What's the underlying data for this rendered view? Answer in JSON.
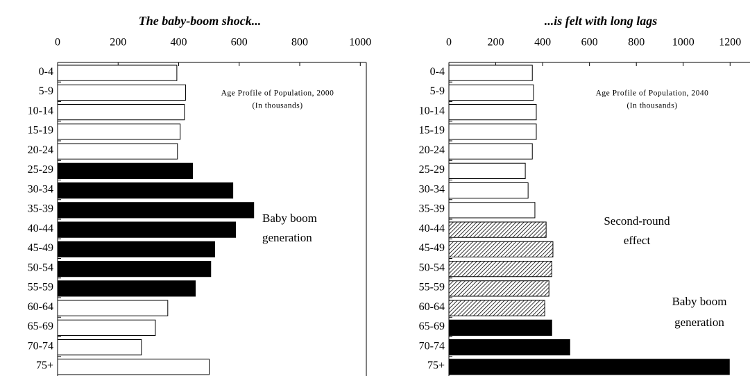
{
  "chart_data": [
    {
      "type": "bar",
      "orientation": "horizontal",
      "title": "The baby-boom shock...",
      "note": [
        "Age Profile of Population, 2000",
        "(In thousands)"
      ],
      "annotations": [
        [
          "Baby boom",
          "generation"
        ]
      ],
      "categories": [
        "0-4",
        "5-9",
        "10-14",
        "15-19",
        "20-24",
        "25-29",
        "30-34",
        "35-39",
        "40-44",
        "45-49",
        "50-54",
        "55-59",
        "60-64",
        "65-69",
        "70-74",
        "75+"
      ],
      "values": [
        394,
        423,
        419,
        405,
        396,
        446,
        579,
        648,
        588,
        519,
        506,
        455,
        364,
        323,
        277,
        501
      ],
      "bar_fills": [
        "white",
        "white",
        "white",
        "white",
        "white",
        "black",
        "black",
        "black",
        "black",
        "black",
        "black",
        "black",
        "white",
        "white",
        "white",
        "white"
      ],
      "xlim": [
        0,
        1020
      ],
      "xticks": [
        0,
        200,
        400,
        600,
        800,
        1000
      ]
    },
    {
      "type": "bar",
      "orientation": "horizontal",
      "title": "...is felt with long lags",
      "note": [
        "Age Profile of Population, 2040",
        "(In thousands)"
      ],
      "annotations": [
        [
          "Second-round",
          "effect"
        ],
        [
          "Baby boom",
          "generation"
        ]
      ],
      "categories": [
        "0-4",
        "5-9",
        "10-14",
        "15-19",
        "20-24",
        "25-29",
        "30-34",
        "35-39",
        "40-44",
        "45-49",
        "50-54",
        "55-59",
        "60-64",
        "65-69",
        "70-74",
        "75+"
      ],
      "values": [
        356,
        361,
        373,
        373,
        356,
        326,
        338,
        367,
        415,
        444,
        439,
        427,
        409,
        439,
        516,
        1197
      ],
      "bar_fills": [
        "white",
        "white",
        "white",
        "white",
        "white",
        "white",
        "white",
        "white",
        "hatched",
        "hatched",
        "hatched",
        "hatched",
        "hatched",
        "black",
        "black",
        "black"
      ],
      "xlim": [
        0,
        1285
      ],
      "xticks": [
        0,
        200,
        400,
        600,
        800,
        1000,
        1200
      ]
    }
  ]
}
